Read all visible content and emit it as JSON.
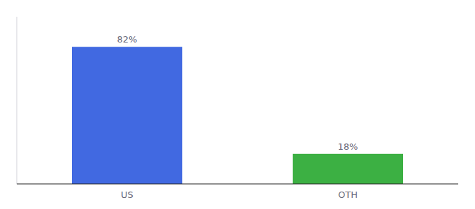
{
  "chart_data": {
    "type": "bar",
    "categories": [
      "US",
      "OTH"
    ],
    "values": [
      82,
      18
    ],
    "value_labels": [
      "82%",
      "18%"
    ],
    "colors": [
      "#4169E1",
      "#3CB043"
    ],
    "ylim": [
      0,
      100
    ],
    "data_labels": true,
    "tick_labels": "x"
  }
}
